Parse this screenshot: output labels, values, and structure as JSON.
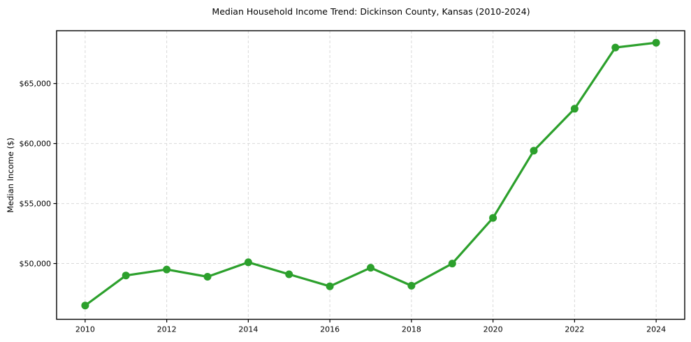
{
  "chart_data": {
    "type": "line",
    "title": "Median Household Income Trend: Dickinson County, Kansas (2010-2024)",
    "xlabel": "",
    "ylabel": "Median Income ($)",
    "x": [
      2010,
      2011,
      2012,
      2013,
      2014,
      2015,
      2016,
      2017,
      2018,
      2019,
      2020,
      2021,
      2022,
      2023,
      2024
    ],
    "values": [
      46500,
      49000,
      49500,
      48900,
      50100,
      49100,
      48100,
      49650,
      48150,
      50000,
      53800,
      59400,
      62900,
      68000,
      68400
    ],
    "series_name": "Median Household Income",
    "xlim": [
      2009.3,
      2024.7
    ],
    "ylim": [
      45350,
      69400
    ],
    "xticks": [
      2010,
      2012,
      2014,
      2016,
      2018,
      2020,
      2022,
      2024
    ],
    "xtick_labels": [
      "2010",
      "2012",
      "2014",
      "2016",
      "2018",
      "2020",
      "2022",
      "2024"
    ],
    "yticks": [
      50000,
      55000,
      60000,
      65000
    ],
    "ytick_labels": [
      "$50,000",
      "$55,000",
      "$60,000",
      "$65,000"
    ],
    "grid": true,
    "legend_position": "none",
    "line_color": "#2ca02c",
    "marker": "circle",
    "marker_radius": 5.5,
    "line_width": 3.2,
    "grid_color": "#d9d9d9",
    "axis_color": "#000000",
    "background_color": "#ffffff"
  }
}
